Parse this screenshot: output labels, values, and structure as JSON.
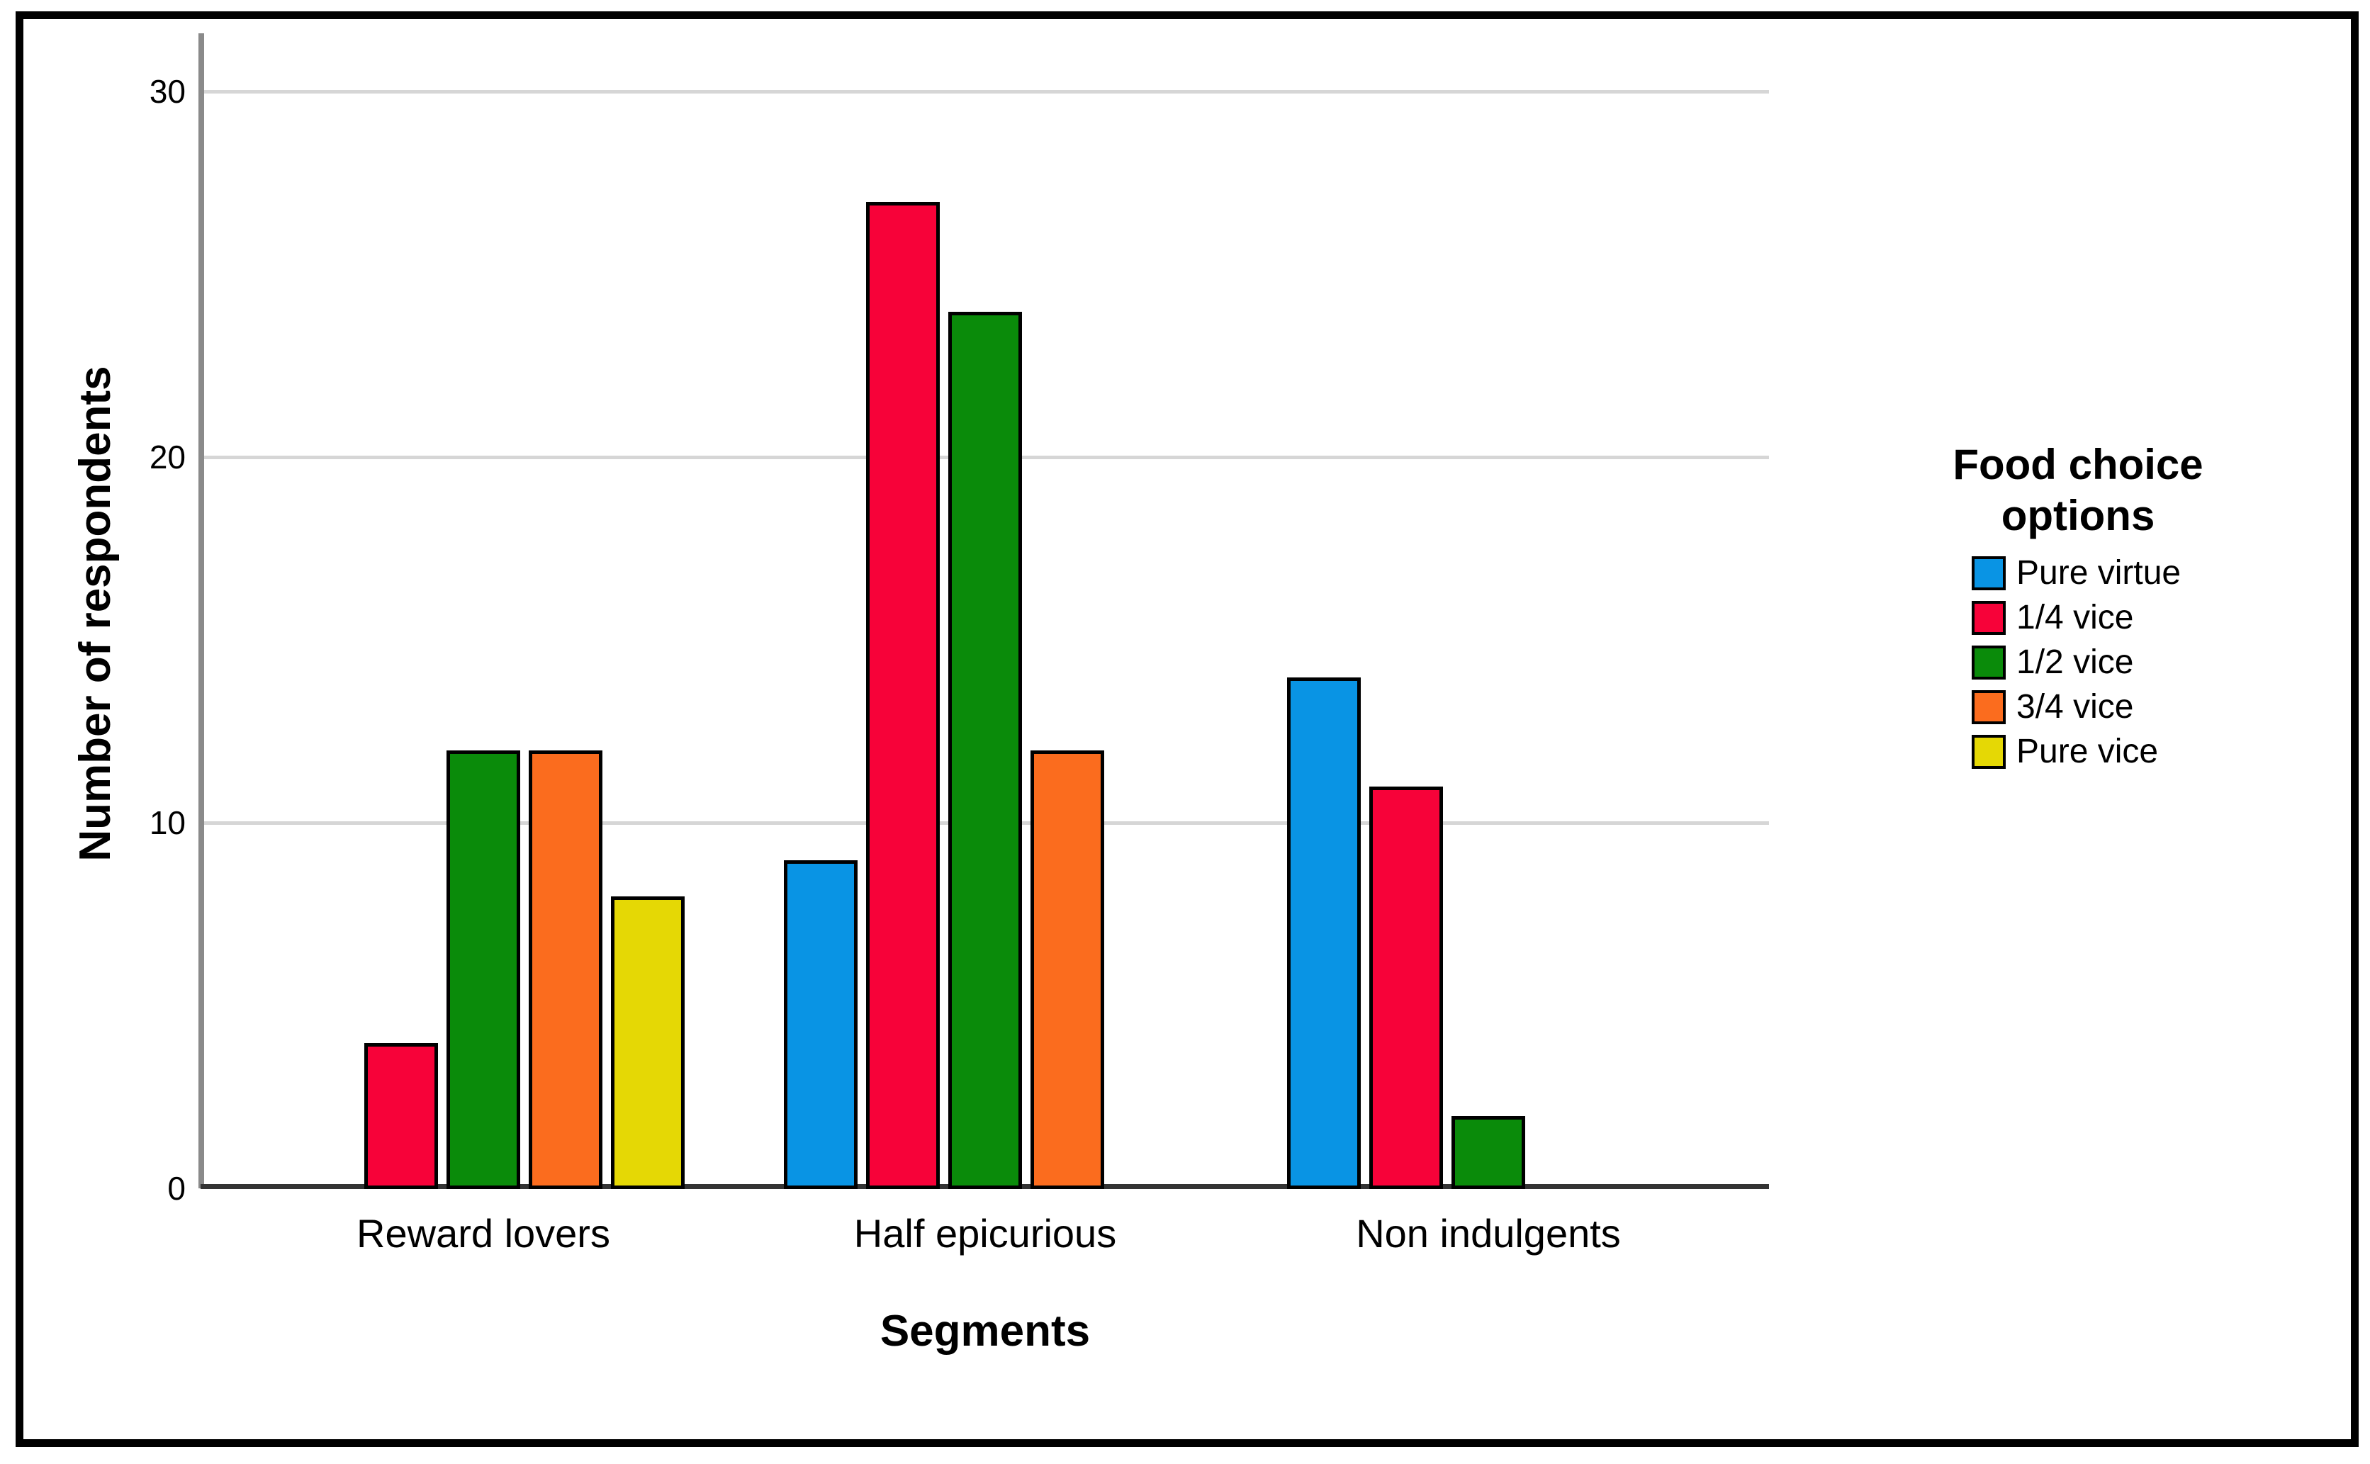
{
  "window": {
    "background": "#ffffff",
    "frame_border_color": "#000000"
  },
  "chart_data": {
    "type": "bar",
    "title": "",
    "xlabel": "Segments",
    "ylabel": "Number of respondents",
    "categories": [
      "Reward lovers",
      "Half epicurious",
      "Non indulgents"
    ],
    "series": [
      {
        "name": "Pure virtue",
        "color": "#0994e4",
        "values": [
          null,
          9,
          14
        ]
      },
      {
        "name": "1/4 vice",
        "color": "#f70239",
        "values": [
          4,
          27,
          11
        ]
      },
      {
        "name": "1/2 vice",
        "color": "#0a8b0a",
        "values": [
          12,
          24,
          2
        ]
      },
      {
        "name": "3/4 vice",
        "color": "#fb6c1e",
        "values": [
          12,
          12,
          null
        ]
      },
      {
        "name": "Pure vice",
        "color": "#e5d805",
        "values": [
          8,
          null,
          null
        ]
      }
    ],
    "ylim": [
      0,
      31.5
    ],
    "yticks": [
      0,
      10,
      20,
      30
    ],
    "grid": "horizontal",
    "gridline_color": "#d6d6d6",
    "y_axis_color": "#8a8a8a",
    "x_axis_color": "#333333",
    "bar_border_color": "#000000",
    "legend_title": "Food choice options",
    "legend_position": "right"
  }
}
